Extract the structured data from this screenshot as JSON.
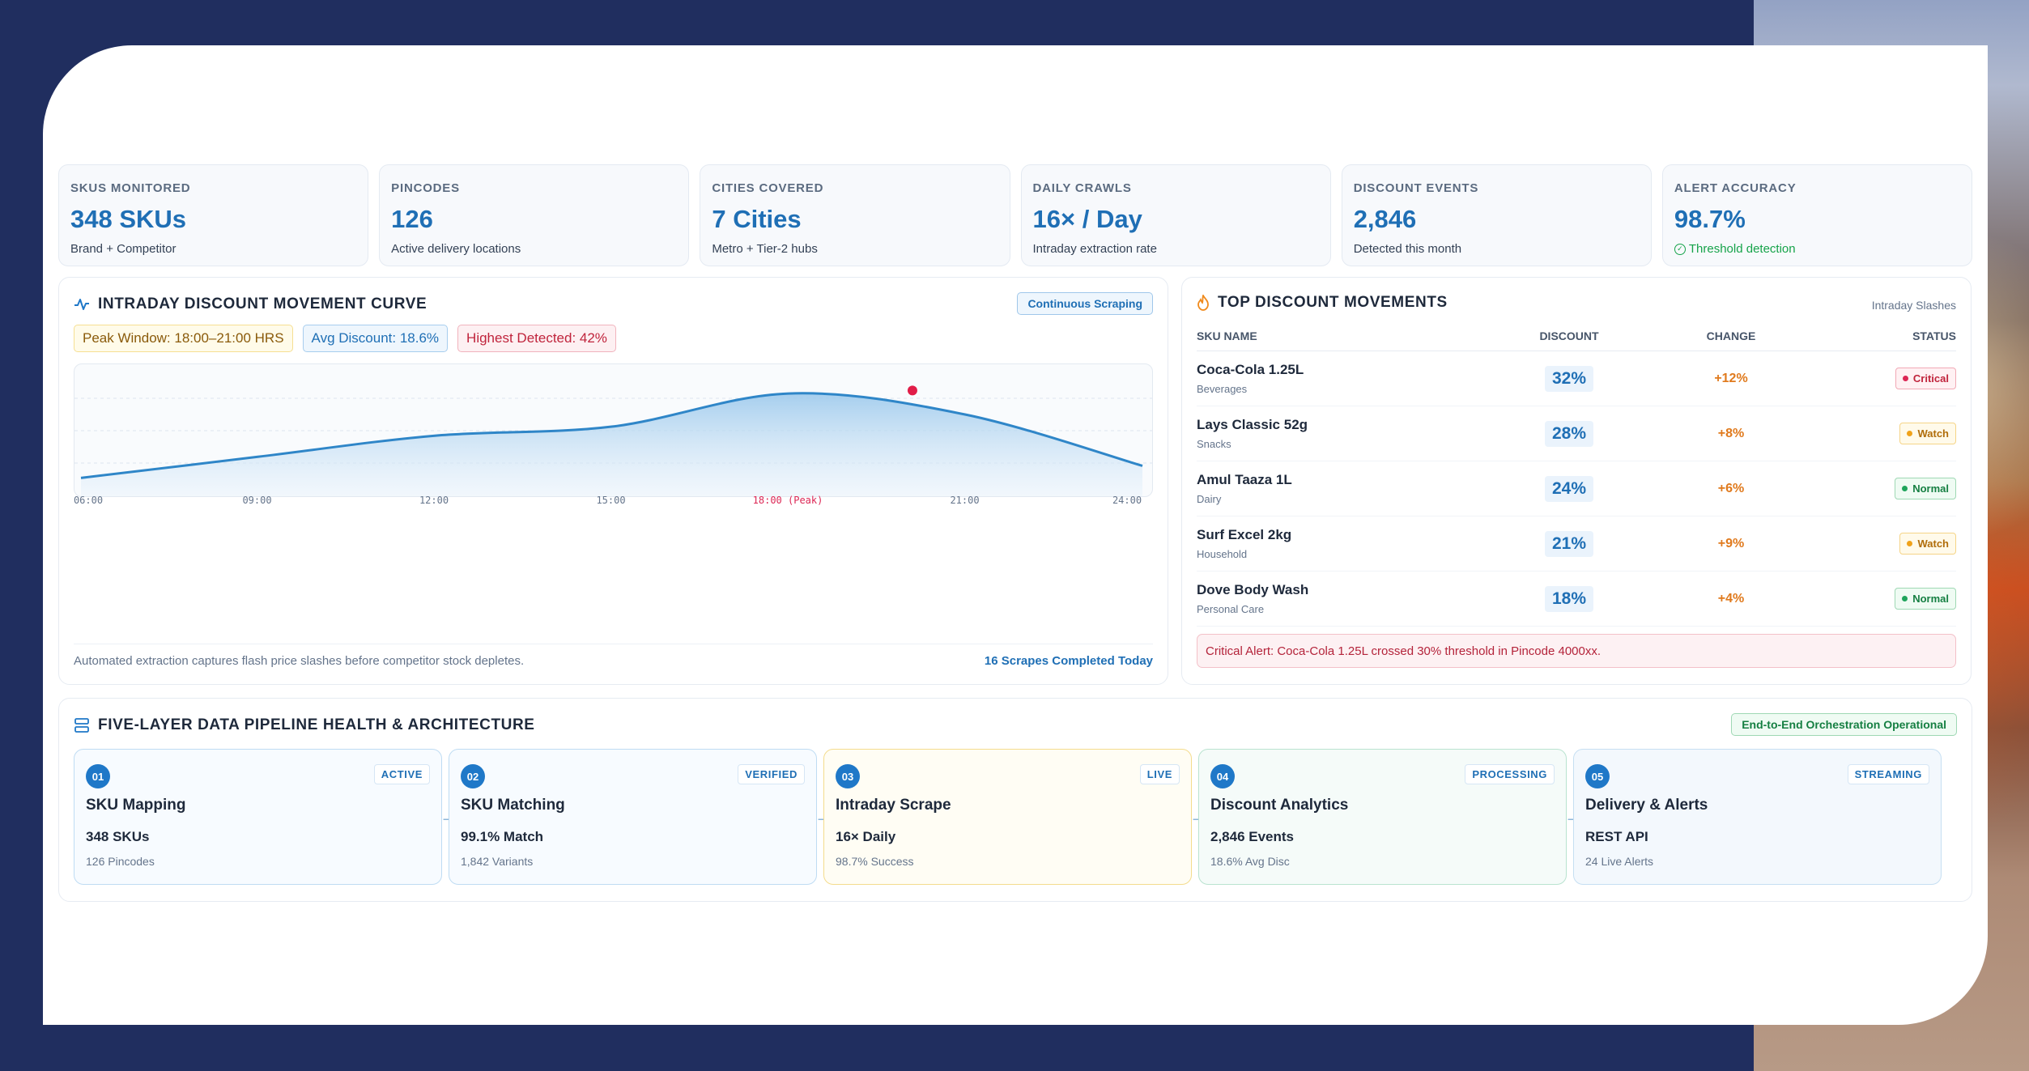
{
  "stats": [
    {
      "label": "SKUS MONITORED",
      "value": "348 SKUs",
      "sub": "Brand + Competitor"
    },
    {
      "label": "PINCODES",
      "value": "126",
      "sub": "Active delivery locations"
    },
    {
      "label": "CITIES COVERED",
      "value": "7 Cities",
      "sub": "Metro + Tier-2 hubs"
    },
    {
      "label": "DAILY CRAWLS",
      "value": "16× / Day",
      "sub": "Intraday extraction rate"
    },
    {
      "label": "DISCOUNT EVENTS",
      "value": "2,846",
      "sub": "Detected this month"
    },
    {
      "label": "ALERT ACCURACY",
      "value": "98.7%",
      "sub": "Threshold detection"
    }
  ],
  "curve": {
    "title": "INTRADAY DISCOUNT MOVEMENT CURVE",
    "button": "Continuous Scraping",
    "tags": {
      "peak": "Peak Window: 18:00–21:00 HRS",
      "avg": "Avg Discount: 18.6%",
      "high": "Highest Detected: 42%"
    },
    "footer_text": "Automated extraction captures flash price slashes before competitor stock depletes.",
    "footer_link": "16 Scrapes Completed Today"
  },
  "chart_data": {
    "type": "area",
    "x": [
      "06:00",
      "09:00",
      "12:00",
      "15:00",
      "18:00",
      "21:00",
      "24:00"
    ],
    "tick_labels": [
      "06:00",
      "09:00",
      "12:00",
      "15:00",
      "18:00 (Peak)",
      "21:00",
      "24:00"
    ],
    "values": [
      5,
      12,
      19,
      22,
      33,
      26,
      9
    ],
    "peak_index": 4.7,
    "peak_value": 34,
    "ylim": [
      0,
      40
    ],
    "grid": true,
    "line_color": "#2f86c8",
    "peak_color": "#e11d48"
  },
  "movements": {
    "title": "TOP DISCOUNT MOVEMENTS",
    "corner": "Intraday Slashes",
    "headers": [
      "SKU NAME",
      "DISCOUNT",
      "CHANGE",
      "STATUS"
    ],
    "rows": [
      {
        "name": "Coca-Cola 1.25L",
        "cat": "Beverages",
        "disc": "32%",
        "chg": "+12%",
        "status": "Critical",
        "kind": "critical"
      },
      {
        "name": "Lays Classic 52g",
        "cat": "Snacks",
        "disc": "28%",
        "chg": "+8%",
        "status": "Watch",
        "kind": "watch"
      },
      {
        "name": "Amul Taaza 1L",
        "cat": "Dairy",
        "disc": "24%",
        "chg": "+6%",
        "status": "Normal",
        "kind": "normal"
      },
      {
        "name": "Surf Excel 2kg",
        "cat": "Household",
        "disc": "21%",
        "chg": "+9%",
        "status": "Watch",
        "kind": "watch"
      },
      {
        "name": "Dove Body Wash",
        "cat": "Personal Care",
        "disc": "18%",
        "chg": "+4%",
        "status": "Normal",
        "kind": "normal"
      }
    ],
    "alert": "Critical Alert: Coca-Cola 1.25L crossed 30% threshold in Pincode 4000xx."
  },
  "pipeline": {
    "title": "FIVE-LAYER DATA PIPELINE HEALTH & ARCHITECTURE",
    "button": "End-to-End Orchestration Operational",
    "steps": [
      {
        "num": "01",
        "badge": "ACTIVE",
        "title": "SKU Mapping",
        "val": "348 SKUs",
        "sub": "126 Pincodes",
        "kind": ""
      },
      {
        "num": "02",
        "badge": "VERIFIED",
        "title": "SKU Matching",
        "val": "99.1% Match",
        "sub": "1,842 Variants",
        "kind": ""
      },
      {
        "num": "03",
        "badge": "LIVE",
        "title": "Intraday Scrape",
        "val": "16× Daily",
        "sub": "98.7% Success",
        "kind": "live"
      },
      {
        "num": "04",
        "badge": "PROCESSING",
        "title": "Discount Analytics",
        "val": "2,846 Events",
        "sub": "18.6% Avg Disc",
        "kind": "processing"
      },
      {
        "num": "05",
        "badge": "STREAMING",
        "title": "Delivery & Alerts",
        "val": "REST API",
        "sub": "24 Live Alerts",
        "kind": "streaming"
      }
    ]
  }
}
